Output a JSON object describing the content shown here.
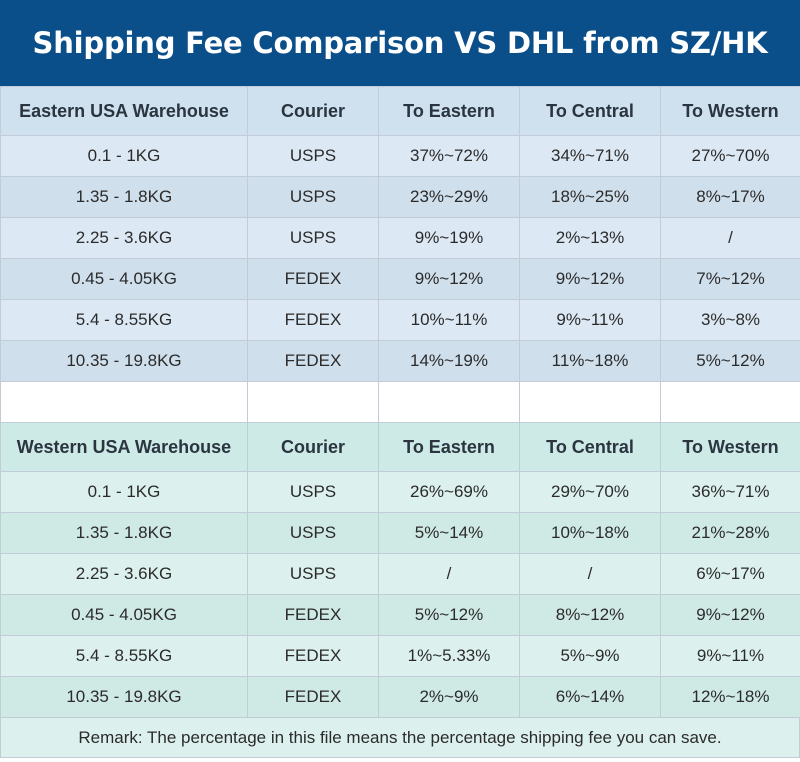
{
  "title": "Shipping Fee Comparison VS DHL from SZ/HK",
  "eastern": {
    "headers": [
      "Eastern USA Warehouse",
      "Courier",
      "To Eastern",
      "To Central",
      "To Western"
    ],
    "rows": [
      [
        "0.1 - 1KG",
        "USPS",
        "37%~72%",
        "34%~71%",
        "27%~70%"
      ],
      [
        "1.35 - 1.8KG",
        "USPS",
        "23%~29%",
        "18%~25%",
        "8%~17%"
      ],
      [
        "2.25 - 3.6KG",
        "USPS",
        "9%~19%",
        "2%~13%",
        "/"
      ],
      [
        "0.45 - 4.05KG",
        "FEDEX",
        "9%~12%",
        "9%~12%",
        "7%~12%"
      ],
      [
        "5.4 - 8.55KG",
        "FEDEX",
        "10%~11%",
        "9%~11%",
        "3%~8%"
      ],
      [
        "10.35 - 19.8KG",
        "FEDEX",
        "14%~19%",
        "11%~18%",
        "5%~12%"
      ]
    ]
  },
  "western": {
    "headers": [
      "Western USA Warehouse",
      "Courier",
      "To Eastern",
      "To Central",
      "To Western"
    ],
    "rows": [
      [
        "0.1 - 1KG",
        "USPS",
        "26%~69%",
        "29%~70%",
        "36%~71%"
      ],
      [
        "1.35 - 1.8KG",
        "USPS",
        "5%~14%",
        "10%~18%",
        "21%~28%"
      ],
      [
        "2.25 - 3.6KG",
        "USPS",
        "/",
        "/",
        "6%~17%"
      ],
      [
        "0.45 - 4.05KG",
        "FEDEX",
        "5%~12%",
        "8%~12%",
        "9%~12%"
      ],
      [
        "5.4 - 8.55KG",
        "FEDEX",
        "1%~5.33%",
        "5%~9%",
        "9%~11%"
      ],
      [
        "10.35 - 19.8KG",
        "FEDEX",
        "2%~9%",
        "6%~14%",
        "12%~18%"
      ]
    ]
  },
  "remark": "Remark: The percentage in this file means the percentage shipping fee you can save.",
  "colors": {
    "banner": "#0b4f8a",
    "eastern_header": "#cfe0ee",
    "western_header": "#cdeae6"
  }
}
